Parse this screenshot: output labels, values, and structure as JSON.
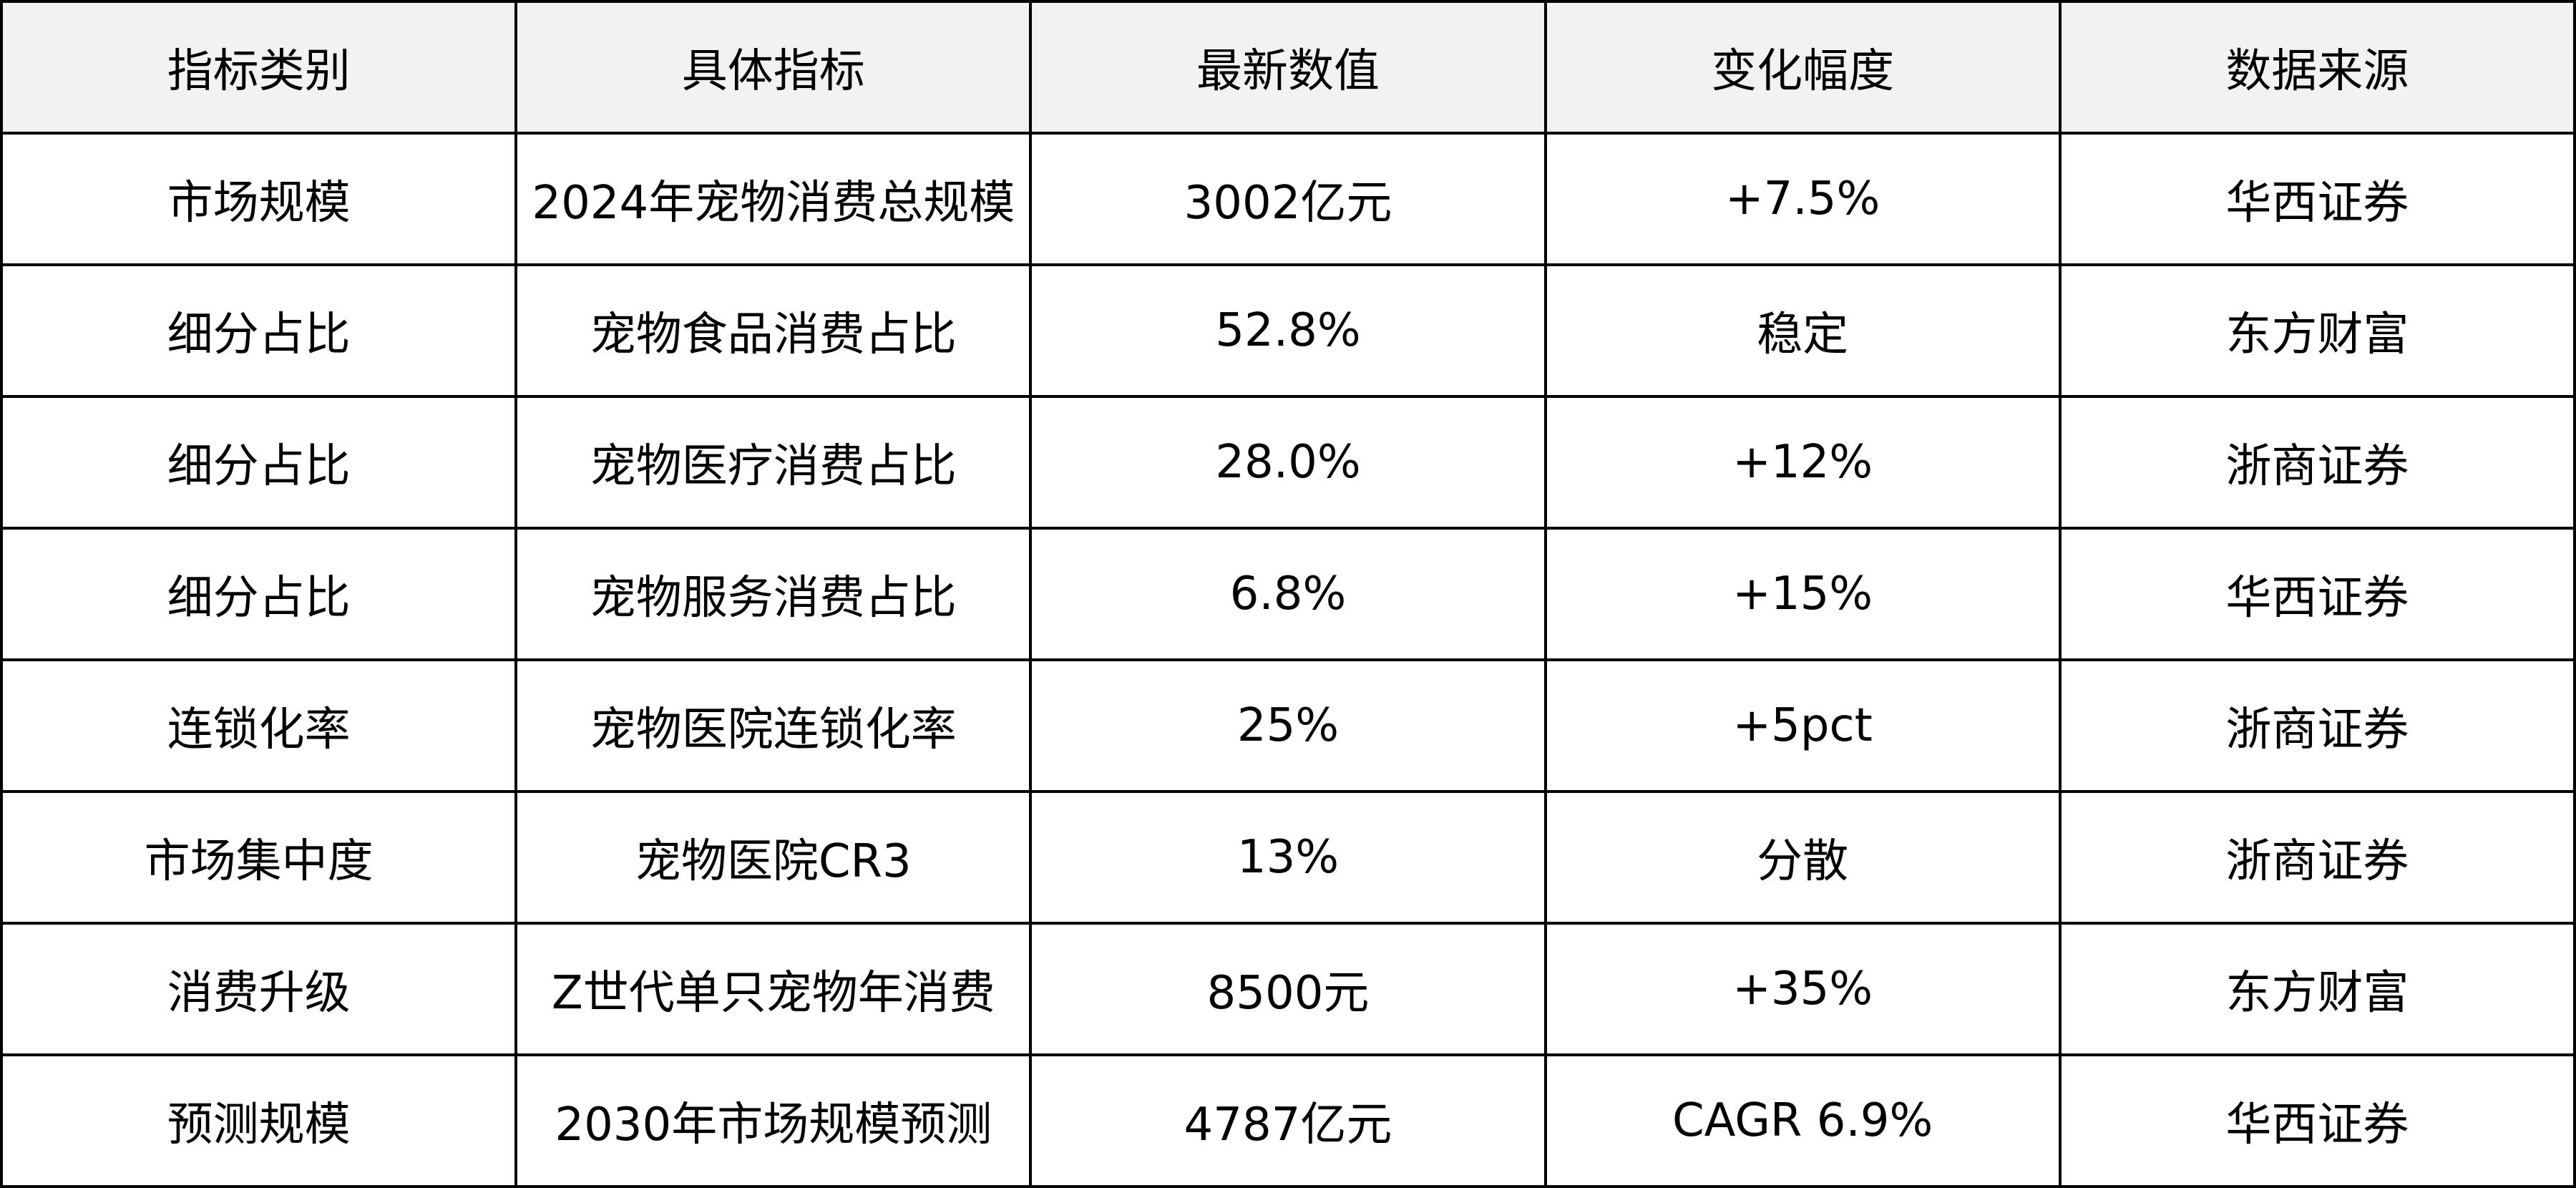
{
  "table": {
    "headers": [
      "指标类别",
      "具体指标",
      "最新数值",
      "变化幅度",
      "数据来源"
    ],
    "rows": [
      [
        "市场规模",
        "2024年宠物消费总规模",
        "3002亿元",
        "+7.5%",
        "华西证券"
      ],
      [
        "细分占比",
        "宠物食品消费占比",
        "52.8%",
        "稳定",
        "东方财富"
      ],
      [
        "细分占比",
        "宠物医疗消费占比",
        "28.0%",
        "+12%",
        "浙商证券"
      ],
      [
        "细分占比",
        "宠物服务消费占比",
        "6.8%",
        "+15%",
        "华西证券"
      ],
      [
        "连锁化率",
        "宠物医院连锁化率",
        "25%",
        "+5pct",
        "浙商证券"
      ],
      [
        "市场集中度",
        "宠物医院CR3",
        "13%",
        "分散",
        "浙商证券"
      ],
      [
        "消费升级",
        "Z世代单只宠物年消费",
        "8500元",
        "+35%",
        "东方财富"
      ],
      [
        "预测规模",
        "2030年市场规模预测",
        "4787亿元",
        "CAGR 6.9%",
        "华西证券"
      ]
    ]
  },
  "colors": {
    "header_bg": "#f2f2f2",
    "border": "#000000"
  }
}
